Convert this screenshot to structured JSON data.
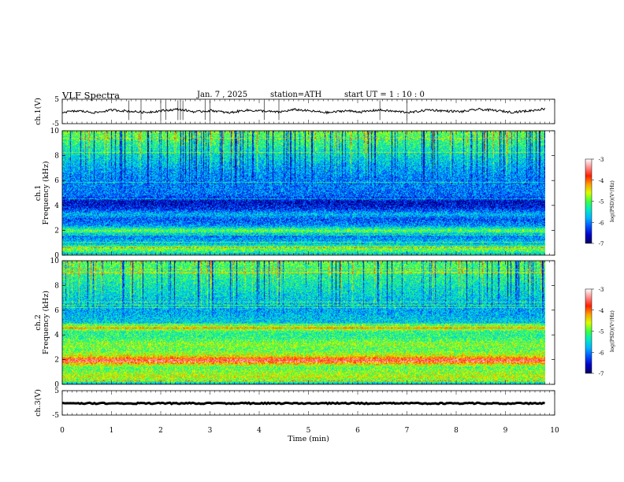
{
  "header": {
    "title": "VLF  Spectra",
    "date": "Jan.  7  , 2025",
    "station": "station=ATH",
    "start_ut": "start  UT  =    1  : 10 : 0"
  },
  "chart_data": [
    {
      "type": "line",
      "panel": "ch1-waveform",
      "ylabel": "ch.1(V)",
      "ylim": [
        -5,
        5
      ],
      "yticks": [
        "5",
        "-5"
      ],
      "xlim": [
        0,
        10
      ],
      "x_end": 9.8,
      "series": [
        {
          "values": [
            -0.3,
            0.2,
            -0.5,
            0.6,
            0.1,
            -0.4,
            0.3,
            0.9,
            -0.2,
            0.4,
            -0.6,
            0.5,
            0.2,
            -0.3,
            0.8,
            0.1,
            -0.5,
            0.3,
            -0.2,
            0.6,
            0.0,
            -0.4,
            0.7,
            0.2,
            -0.1,
            0.9,
            0.4,
            -0.3,
            0.2,
            1.1
          ]
        }
      ],
      "spikes_at_min": [
        1.35,
        1.6,
        2.0,
        2.1,
        2.35,
        2.4,
        2.45,
        2.9,
        3.0,
        4.1,
        4.4,
        6.45,
        7.0
      ]
    },
    {
      "type": "heatmap",
      "panel": "ch1-spectrogram",
      "ylabel": "ch.1 Frequency  (kHz)",
      "ylim": [
        0,
        10
      ],
      "yticks": [
        "0",
        "2",
        "4",
        "6",
        "8",
        "10"
      ],
      "xlim": [
        0,
        10
      ],
      "x_end": 9.8,
      "log_psd_range": [
        -7,
        -3
      ],
      "mean_profile": [
        [
          0.0,
          -6.0
        ],
        [
          0.3,
          -5.2
        ],
        [
          0.6,
          -4.8
        ],
        [
          0.9,
          -5.6
        ],
        [
          1.2,
          -5.8
        ],
        [
          1.6,
          -6.0
        ],
        [
          2.0,
          -4.9
        ],
        [
          2.4,
          -5.9
        ],
        [
          2.9,
          -6.2
        ],
        [
          3.3,
          -5.7
        ],
        [
          3.8,
          -6.4
        ],
        [
          4.3,
          -6.6
        ],
        [
          4.8,
          -6.1
        ],
        [
          5.3,
          -6.0
        ],
        [
          6.0,
          -6.0
        ],
        [
          7.0,
          -5.8
        ],
        [
          8.0,
          -5.5
        ],
        [
          9.0,
          -5.2
        ],
        [
          10.0,
          -4.9
        ]
      ]
    },
    {
      "type": "heatmap",
      "panel": "ch2-spectrogram",
      "ylabel": "ch.2 Frequency  (kHz)",
      "ylim": [
        0,
        10
      ],
      "yticks": [
        "0",
        "2",
        "4",
        "6",
        "8",
        "10"
      ],
      "xlim": [
        0,
        10
      ],
      "x_end": 9.8,
      "log_psd_range": [
        -7,
        -3
      ],
      "mean_profile": [
        [
          0.0,
          -5.8
        ],
        [
          0.3,
          -5.0
        ],
        [
          0.6,
          -4.6
        ],
        [
          1.0,
          -4.8
        ],
        [
          1.4,
          -5.0
        ],
        [
          1.7,
          -4.4
        ],
        [
          2.0,
          -3.5
        ],
        [
          2.3,
          -4.5
        ],
        [
          2.8,
          -5.0
        ],
        [
          3.3,
          -4.8
        ],
        [
          3.8,
          -5.2
        ],
        [
          4.3,
          -5.2
        ],
        [
          4.6,
          -4.4
        ],
        [
          5.0,
          -5.6
        ],
        [
          6.0,
          -5.8
        ],
        [
          7.0,
          -5.6
        ],
        [
          8.0,
          -5.4
        ],
        [
          9.0,
          -5.2
        ],
        [
          10.0,
          -5.0
        ]
      ]
    },
    {
      "type": "line",
      "panel": "ch3-waveform",
      "ylabel": "ch.3(V)",
      "ylim": [
        -5,
        5
      ],
      "yticks": [
        "5",
        "-5"
      ],
      "xlim": [
        0,
        10
      ],
      "x_end": 9.8,
      "series": [
        {
          "values": [
            -0.2,
            -0.2,
            -0.2,
            -0.2,
            -0.2,
            -0.2,
            -0.2,
            -0.2,
            -0.2,
            -0.2
          ]
        }
      ],
      "xticks": [
        "0",
        "1",
        "2",
        "3",
        "4",
        "5",
        "6",
        "7",
        "8",
        "9",
        "10"
      ],
      "xlabel": "Time  (min)"
    }
  ],
  "colorbars": [
    {
      "label": "log(PSD)(V²/Hz)",
      "ticks": [
        "-3",
        "-4",
        "-5",
        "-6",
        "-7"
      ],
      "range": [
        -7,
        -3
      ]
    },
    {
      "label": "log(PSD)(V²/Hz)",
      "ticks": [
        "-3",
        "-4",
        "-5",
        "-6",
        "-7"
      ],
      "range": [
        -7,
        -3
      ]
    }
  ],
  "colormap": [
    "#000060",
    "#0000c8",
    "#0050ff",
    "#00b4ff",
    "#00e8c8",
    "#40ff40",
    "#d8ff00",
    "#ffa000",
    "#ff2000",
    "#ff8c8c",
    "#ffffff"
  ],
  "colors": {
    "trace": "#000000",
    "axis": "#000000"
  }
}
